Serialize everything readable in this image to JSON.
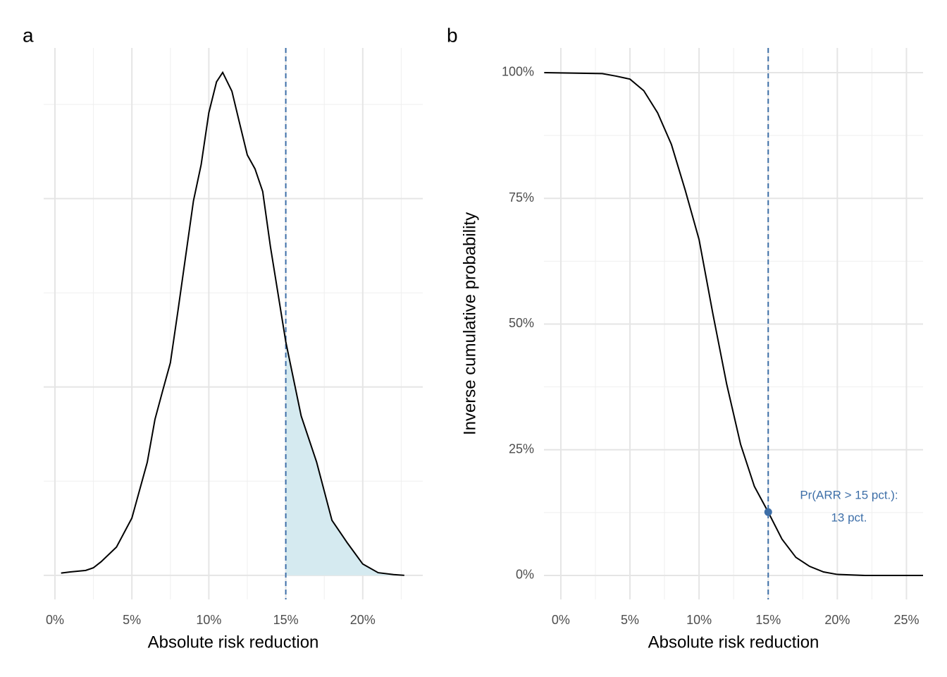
{
  "chart_data": [
    {
      "type": "density",
      "tag": "a",
      "xlabel": "Absolute risk reduction",
      "x": [
        0.4,
        1,
        2,
        2.5,
        3,
        4,
        5,
        6,
        6.5,
        7,
        7.5,
        8,
        9,
        9.5,
        10,
        10.5,
        10.9,
        11.5,
        12,
        12.5,
        13,
        13.5,
        14,
        15,
        16,
        17,
        18,
        19,
        20,
        21,
        22,
        22.7
      ],
      "values": [
        0.06,
        0.09,
        0.13,
        0.2,
        0.36,
        0.75,
        1.52,
        3.0,
        4.14,
        4.9,
        5.64,
        7.04,
        9.94,
        10.9,
        12.28,
        13.1,
        13.35,
        12.85,
        12.0,
        11.16,
        10.79,
        10.19,
        8.73,
        6.2,
        4.23,
        3.01,
        1.46,
        0.86,
        0.3,
        0.07,
        0.02,
        0
      ],
      "color": "#000000",
      "fill": "#d5eaf0",
      "shade_from": 15,
      "vline": 15,
      "vline_color": "#3e6fa8",
      "xlim": [
        -0.73,
        23.9
      ],
      "ylim": [
        -0.64,
        14.0
      ],
      "xticks": [
        {
          "value": 0,
          "label": "0%"
        },
        {
          "value": 5,
          "label": "5%"
        },
        {
          "value": 10,
          "label": "10%"
        },
        {
          "value": 15,
          "label": "15%"
        },
        {
          "value": 20,
          "label": "20%"
        }
      ],
      "ygrid": [
        0,
        5,
        10
      ],
      "grid": true
    },
    {
      "type": "line",
      "tag": "b",
      "xlabel": "Absolute risk reduction",
      "ylabel": "Inverse cumulative probability",
      "x": [
        -1.2,
        3,
        4,
        5,
        6,
        7,
        8,
        9,
        10,
        11,
        12,
        13,
        14,
        15,
        16,
        17,
        18,
        19,
        20,
        22,
        26.2
      ],
      "values": [
        100,
        99.8,
        99.3,
        98.7,
        96.4,
        92,
        85.7,
        76.6,
        66.8,
        52,
        38,
        26.1,
        17.7,
        12.6,
        7.2,
        3.6,
        1.8,
        0.7,
        0.2,
        0,
        0
      ],
      "color": "#000000",
      "vline": 15,
      "vline_color": "#3e6fa8",
      "point": {
        "x": 15,
        "y": 12.6
      },
      "annotation": [
        "Pr(ARR > 15 pct.):",
        "13 pct."
      ],
      "xlim": [
        -1.22,
        26.2
      ],
      "ylim": [
        -4.77,
        104.9
      ],
      "xticks": [
        {
          "value": 0,
          "label": "0%"
        },
        {
          "value": 5,
          "label": "5%"
        },
        {
          "value": 10,
          "label": "10%"
        },
        {
          "value": 15,
          "label": "15%"
        },
        {
          "value": 20,
          "label": "20%"
        },
        {
          "value": 25,
          "label": "25%"
        }
      ],
      "yticks": [
        {
          "value": 0,
          "label": "0%"
        },
        {
          "value": 25,
          "label": "25%"
        },
        {
          "value": 50,
          "label": "50%"
        },
        {
          "value": 75,
          "label": "75%"
        },
        {
          "value": 100,
          "label": "100%"
        }
      ],
      "grid": true
    }
  ]
}
